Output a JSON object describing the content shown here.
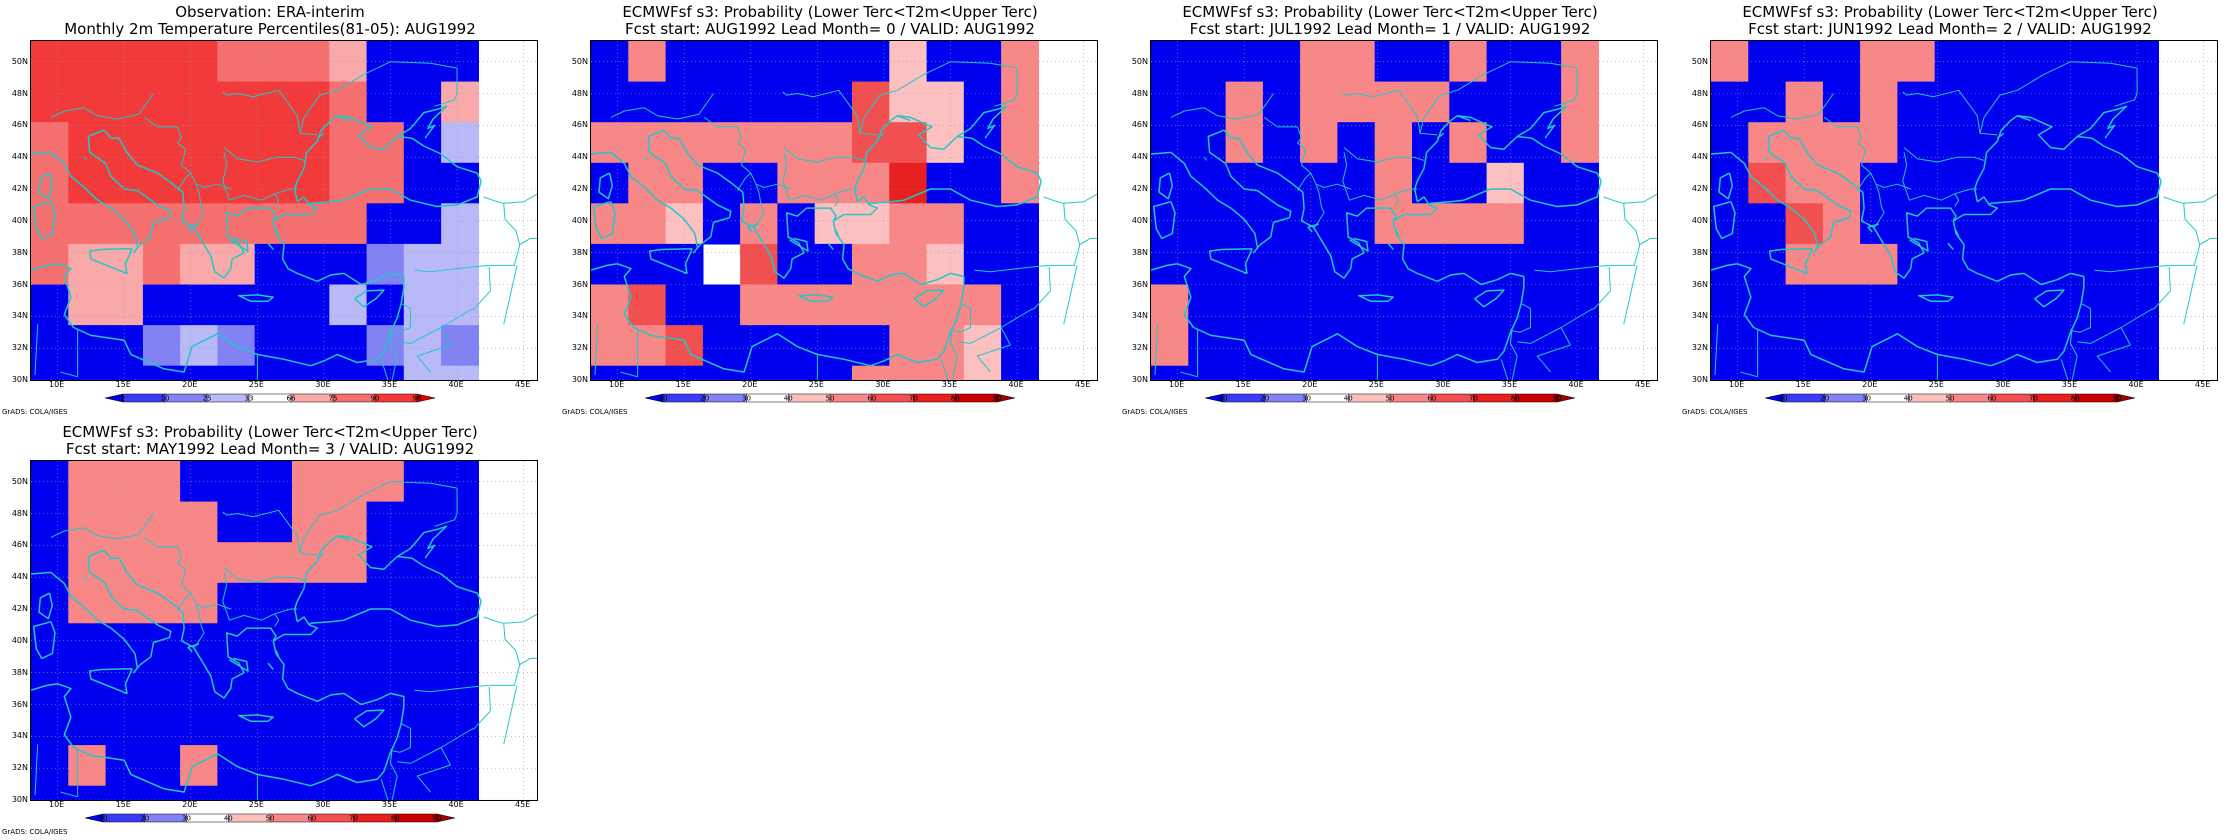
{
  "map_grid": {
    "lon_min": 8,
    "lon_max": 46,
    "lat_min": 30,
    "lat_max": 51.3,
    "cell_lon": 2.8,
    "cell_lat": 2.55,
    "lat_ticks": [
      "30N",
      "32N",
      "34N",
      "36N",
      "38N",
      "40N",
      "42N",
      "44N",
      "46N",
      "48N",
      "50N"
    ],
    "lat_values": [
      30,
      32,
      34,
      36,
      38,
      40,
      42,
      44,
      46,
      48,
      50
    ],
    "lon_ticks": [
      "10E",
      "15E",
      "20E",
      "25E",
      "30E",
      "35E",
      "40E",
      "45E"
    ],
    "lon_values": [
      10,
      15,
      20,
      25,
      30,
      35,
      40,
      45
    ]
  },
  "coast_color": "#22c7c7",
  "credit": "GrADS: COLA/IGES",
  "panels": [
    {
      "title_line1": "Observation: ERA-interim",
      "title_line2": "Monthly 2m Temperature Percentiles(81-05): AUG1992",
      "colorbar": {
        "labels": [
          "2",
          "10",
          "25",
          "33",
          "66",
          "75",
          "90",
          "98"
        ],
        "colors": [
          "#0000f0",
          "#3c3cf5",
          "#8282f5",
          "#b9b9f8",
          "#ffffff",
          "#f9a9a9",
          "#f77070",
          "#f23a3a",
          "#e00000"
        ]
      },
      "grid": [
        "777776665000",
        "777777776005",
        "677777776603",
        "677777776600",
        "666666666003",
        "655655000233",
        "055000003033",
        "000232000232",
        "000000000033"
      ]
    },
    {
      "title_line1": "ECMWFsf s3: Probability (Lower Terc<T2m<Upper Terc)",
      "title_line2": "Fcst start: AUG1992   Lead Month= 0 / VALID: AUG1992",
      "colorbar": {
        "labels": [
          "10",
          "20",
          "30",
          "40",
          "50",
          "60",
          "70",
          "80",
          "90"
        ],
        "colors": [
          "#0000f0",
          "#3c3cf5",
          "#8282f5",
          "#ffffff",
          "#fcc0c0",
          "#f88888",
          "#f25050",
          "#e62020",
          "#cc0000",
          "#a00000"
        ]
      },
      "grid": [
        "050000004005",
        "000000064405",
        "555555566405",
        "055005557005",
        "554050445500",
        "000360055400",
        "560055555550",
        "556000005540",
        "000000055540"
      ]
    },
    {
      "title_line1": "ECMWFsf s3: Probability (Lower Terc<T2m<Upper Terc)",
      "title_line2": "Fcst start: JUL1992   Lead Month= 1 / VALID: AUG1992",
      "colorbar": {
        "labels": [
          "10",
          "20",
          "30",
          "40",
          "50",
          "60",
          "70",
          "80",
          "90"
        ],
        "colors": [
          "#0000f0",
          "#3c3cf5",
          "#8282f5",
          "#ffffff",
          "#fcc0c0",
          "#f88888",
          "#f25050",
          "#e62020",
          "#cc0000",
          "#a00000"
        ]
      },
      "grid": [
        "000055005005",
        "005055550005",
        "005050505005",
        "000000500400",
        "000000555500",
        "000000000000",
        "500000000000",
        "500000000000",
        "000000000000"
      ]
    },
    {
      "title_line1": "ECMWFsf s3: Probability (Lower Terc<T2m<Upper Terc)",
      "title_line2": "Fcst start: JUN1992   Lead Month= 2 / VALID: AUG1992",
      "colorbar": {
        "labels": [
          "10",
          "20",
          "30",
          "40",
          "50",
          "60",
          "70",
          "80",
          "90"
        ],
        "colors": [
          "#0000f0",
          "#3c3cf5",
          "#8282f5",
          "#ffffff",
          "#fcc0c0",
          "#f88888",
          "#f25050",
          "#e62020",
          "#cc0000",
          "#a00000"
        ]
      },
      "grid": [
        "500055000000",
        "005050000000",
        "055550000000",
        "065500000000",
        "006500000000",
        "005550000000",
        "000000000000",
        "000000000000",
        "000000000000"
      ]
    },
    {
      "title_line1": "ECMWFsf s3: Probability (Lower Terc<T2m<Upper Terc)",
      "title_line2": "Fcst start: MAY1992   Lead Month= 3 / VALID: AUG1992",
      "colorbar": {
        "labels": [
          "10",
          "20",
          "30",
          "40",
          "50",
          "60",
          "70",
          "80",
          "90"
        ],
        "colors": [
          "#0000f0",
          "#3c3cf5",
          "#8282f5",
          "#ffffff",
          "#fcc0c0",
          "#f88888",
          "#f25050",
          "#e62020",
          "#cc0000",
          "#a00000"
        ]
      },
      "grid": [
        "055500055500",
        "055550055000",
        "055555555000",
        "055550000000",
        "000000000000",
        "000000000000",
        "000000000000",
        "050050000000",
        "000000000000"
      ]
    }
  ]
}
